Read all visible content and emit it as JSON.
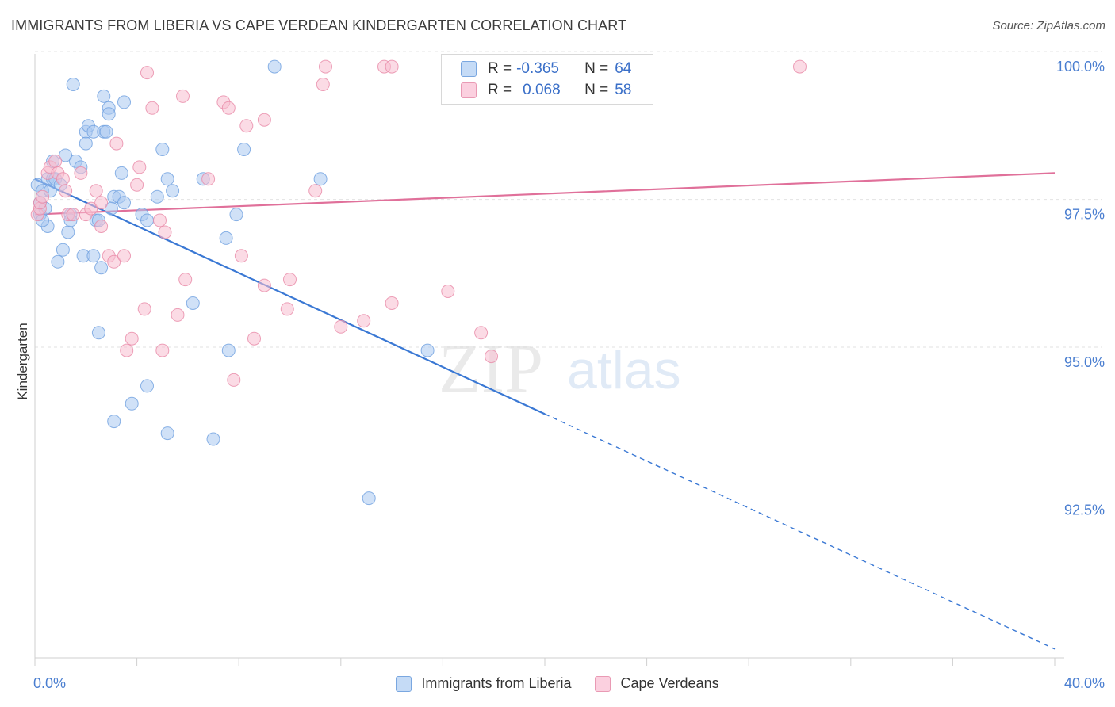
{
  "header": {
    "title": "IMMIGRANTS FROM LIBERIA VS CAPE VERDEAN KINDERGARTEN CORRELATION CHART",
    "source": "Source: ZipAtlas.com"
  },
  "watermark": {
    "zip": "ZIP",
    "atlas": "atlas"
  },
  "legend": {
    "rows": [
      {
        "r_label": "R =",
        "r_value": "-0.365",
        "n_label": "N =",
        "n_value": "64",
        "color": "#a9c8f0",
        "border": "#6fa0e0"
      },
      {
        "r_label": "R =",
        "r_value": "0.068",
        "n_label": "N =",
        "n_value": "58",
        "color": "#f7bdd0",
        "border": "#e98aa8"
      }
    ]
  },
  "bottom_legend": {
    "items": [
      {
        "label": "Immigrants from Liberia",
        "color": "#c5dbf6",
        "border": "#7aa7e0"
      },
      {
        "label": "Cape Verdeans",
        "color": "#fbd0df",
        "border": "#e99ab4"
      }
    ]
  },
  "chart_data": {
    "type": "scatter",
    "title": "IMMIGRANTS FROM LIBERIA VS CAPE VERDEAN KINDERGARTEN CORRELATION CHART",
    "xlabel": "",
    "ylabel": "Kindergarten",
    "xlim": [
      0,
      40
    ],
    "ylim": [
      90.0,
      100.35
    ],
    "x_tick_labels": [
      "0.0%",
      "40.0%"
    ],
    "y_ticks": [
      92.5,
      95.0,
      97.5,
      100.0
    ],
    "y_tick_labels": [
      "92.5%",
      "95.0%",
      "97.5%",
      "100.0%"
    ],
    "grid": true,
    "series": [
      {
        "name": "Immigrants from Liberia",
        "color": "#6fa0e0",
        "fill": "#a9c8f0",
        "trend": {
          "x0": 0,
          "y0": 98.1,
          "x1": 40,
          "y1": 90.15,
          "solid_until": 20.0
        },
        "points": [
          [
            0.1,
            98.0
          ],
          [
            0.2,
            97.7
          ],
          [
            0.2,
            97.5
          ],
          [
            0.3,
            97.9
          ],
          [
            0.4,
            97.6
          ],
          [
            0.5,
            98.1
          ],
          [
            0.5,
            97.3
          ],
          [
            0.6,
            97.9
          ],
          [
            0.7,
            98.4
          ],
          [
            0.7,
            98.1
          ],
          [
            0.8,
            98.1
          ],
          [
            0.9,
            96.7
          ],
          [
            1.0,
            98.0
          ],
          [
            1.1,
            96.9
          ],
          [
            1.2,
            98.5
          ],
          [
            1.3,
            97.2
          ],
          [
            1.4,
            97.5
          ],
          [
            1.5,
            99.7
          ],
          [
            1.6,
            98.4
          ],
          [
            1.8,
            98.3
          ],
          [
            1.9,
            96.8
          ],
          [
            2.0,
            98.9
          ],
          [
            2.0,
            98.7
          ],
          [
            2.1,
            99.0
          ],
          [
            2.3,
            96.8
          ],
          [
            2.3,
            98.9
          ],
          [
            2.4,
            97.4
          ],
          [
            2.5,
            95.5
          ],
          [
            2.6,
            96.6
          ],
          [
            2.7,
            98.9
          ],
          [
            2.7,
            99.5
          ],
          [
            2.8,
            98.9
          ],
          [
            2.9,
            99.3
          ],
          [
            2.9,
            99.2
          ],
          [
            3.1,
            97.8
          ],
          [
            3.1,
            94.0
          ],
          [
            3.3,
            97.8
          ],
          [
            3.4,
            98.2
          ],
          [
            3.5,
            99.4
          ],
          [
            3.5,
            97.7
          ],
          [
            3.8,
            94.3
          ],
          [
            4.2,
            97.5
          ],
          [
            4.4,
            97.4
          ],
          [
            4.4,
            94.6
          ],
          [
            4.8,
            97.8
          ],
          [
            5.0,
            98.6
          ],
          [
            5.2,
            98.1
          ],
          [
            5.2,
            93.8
          ],
          [
            5.4,
            97.9
          ],
          [
            6.2,
            96.0
          ],
          [
            6.6,
            98.1
          ],
          [
            7.0,
            93.7
          ],
          [
            7.5,
            97.1
          ],
          [
            7.6,
            95.2
          ],
          [
            7.9,
            97.5
          ],
          [
            8.2,
            98.6
          ],
          [
            9.4,
            100.0
          ],
          [
            11.2,
            98.1
          ],
          [
            13.1,
            92.7
          ],
          [
            15.4,
            95.2
          ],
          [
            0.3,
            97.4
          ],
          [
            1.4,
            97.4
          ],
          [
            2.5,
            97.4
          ],
          [
            3.0,
            97.6
          ]
        ]
      },
      {
        "name": "Cape Verdeans",
        "color": "#e98aa8",
        "fill": "#f7bdd0",
        "trend": {
          "x0": 0,
          "y0": 97.5,
          "x1": 40,
          "y1": 98.2
        },
        "points": [
          [
            0.1,
            97.5
          ],
          [
            0.2,
            97.6
          ],
          [
            0.2,
            97.7
          ],
          [
            0.3,
            97.8
          ],
          [
            0.5,
            98.2
          ],
          [
            0.6,
            98.3
          ],
          [
            0.8,
            98.4
          ],
          [
            0.9,
            98.2
          ],
          [
            1.1,
            98.1
          ],
          [
            1.3,
            97.5
          ],
          [
            1.5,
            97.5
          ],
          [
            1.8,
            98.2
          ],
          [
            2.0,
            97.5
          ],
          [
            2.2,
            97.6
          ],
          [
            2.4,
            97.9
          ],
          [
            2.6,
            97.7
          ],
          [
            2.6,
            97.3
          ],
          [
            2.9,
            96.8
          ],
          [
            3.1,
            96.7
          ],
          [
            3.2,
            98.7
          ],
          [
            3.5,
            96.8
          ],
          [
            3.6,
            95.2
          ],
          [
            3.8,
            95.4
          ],
          [
            4.0,
            98.0
          ],
          [
            4.1,
            98.3
          ],
          [
            4.3,
            95.9
          ],
          [
            4.4,
            99.9
          ],
          [
            4.6,
            99.3
          ],
          [
            4.9,
            97.4
          ],
          [
            5.1,
            97.2
          ],
          [
            5.0,
            95.2
          ],
          [
            5.6,
            95.8
          ],
          [
            5.8,
            99.5
          ],
          [
            5.9,
            96.4
          ],
          [
            6.8,
            98.1
          ],
          [
            7.4,
            99.4
          ],
          [
            7.6,
            99.3
          ],
          [
            7.8,
            94.7
          ],
          [
            8.1,
            96.8
          ],
          [
            8.3,
            99.0
          ],
          [
            8.6,
            95.4
          ],
          [
            9.0,
            99.1
          ],
          [
            9.0,
            96.3
          ],
          [
            9.9,
            95.9
          ],
          [
            10.0,
            96.4
          ],
          [
            11.0,
            97.9
          ],
          [
            11.3,
            99.7
          ],
          [
            11.4,
            100.0
          ],
          [
            12.0,
            95.6
          ],
          [
            12.9,
            95.7
          ],
          [
            13.7,
            100.0
          ],
          [
            14.0,
            100.0
          ],
          [
            14.0,
            96.0
          ],
          [
            16.2,
            96.2
          ],
          [
            17.5,
            95.5
          ],
          [
            17.9,
            95.1
          ],
          [
            30.0,
            100.0
          ],
          [
            1.2,
            97.9
          ]
        ]
      }
    ]
  }
}
